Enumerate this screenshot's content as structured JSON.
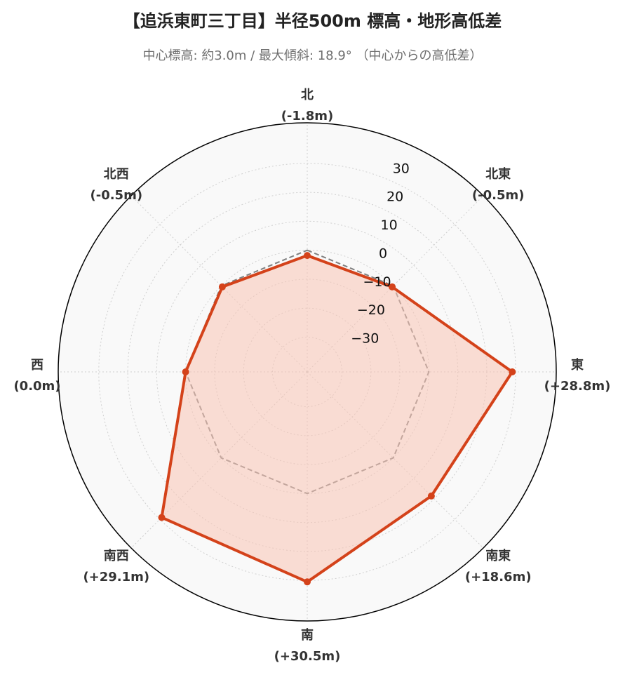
{
  "title": "【追浜東町三丁目】半径500m 標高・地形高低差",
  "subtitle": "中心標高: 約3.0m / 最大傾斜: 18.9°  （中心からの高低差）",
  "colors": {
    "series": "#d4421a",
    "fill": "#f9c4b4",
    "reference": "#808080",
    "plot_bg": "#f9f9f9",
    "grid": "#cfcfcf"
  },
  "chart_data": {
    "type": "radar",
    "title": "【追浜東町三丁目】半径500m 標高・地形高低差",
    "subtitle": "中心標高: 約3.0m / 最大傾斜: 18.9°  （中心からの高低差）",
    "directions": [
      {
        "name": "北",
        "label": "(-1.8m)"
      },
      {
        "name": "北東",
        "label": "(-0.5m)"
      },
      {
        "name": "東",
        "label": "(+28.8m)"
      },
      {
        "name": "南東",
        "label": "(+18.6m)"
      },
      {
        "name": "南",
        "label": "(+30.5m)"
      },
      {
        "name": "南西",
        "label": "(+29.1m)"
      },
      {
        "name": "西",
        "label": "(0.0m)"
      },
      {
        "name": "北西",
        "label": "(-0.5m)"
      }
    ],
    "values": [
      -1.8,
      -0.5,
      28.8,
      18.6,
      30.5,
      29.1,
      0.0,
      -0.5
    ],
    "reference_value": 0,
    "radial_ticks": [
      -30,
      -20,
      -10,
      0,
      10,
      20,
      30
    ],
    "radial_range": [
      -42,
      44
    ],
    "grid": true,
    "reference_style": "dashed"
  }
}
